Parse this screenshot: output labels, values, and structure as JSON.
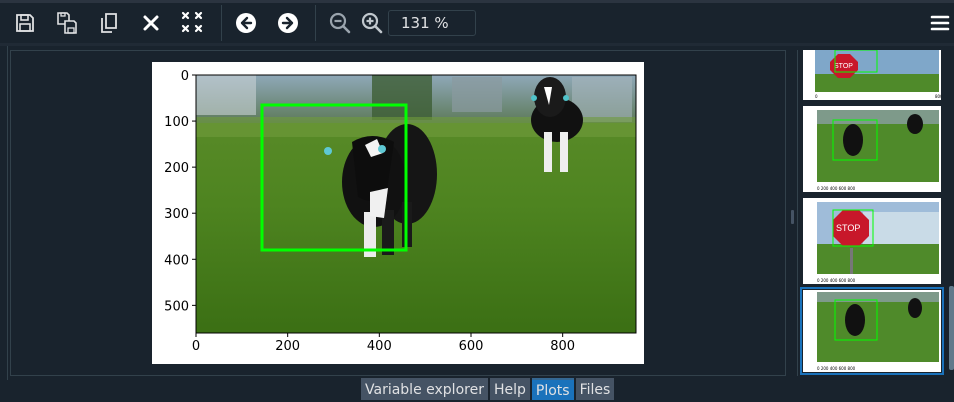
{
  "toolbar": {
    "buttons": [
      {
        "name": "save-icon"
      },
      {
        "name": "save-all-icon"
      },
      {
        "name": "copy-icon"
      },
      {
        "name": "remove-icon"
      },
      {
        "name": "remove-all-icon"
      },
      {
        "name": "previous-icon"
      },
      {
        "name": "next-icon"
      },
      {
        "name": "zoom-out-icon"
      },
      {
        "name": "zoom-in-icon"
      }
    ],
    "zoom_value": "131 %",
    "menu_icon": "hamburger-menu-icon"
  },
  "plot": {
    "x_ticks": [
      "0",
      "200",
      "400",
      "600",
      "800"
    ],
    "y_ticks": [
      "0",
      "100",
      "200",
      "300",
      "400",
      "500"
    ],
    "image_subject": "cow in grass field with green bounding box"
  },
  "thumbnails": [
    {
      "subject": "stop sign",
      "selected": false
    },
    {
      "subject": "cows",
      "selected": false
    },
    {
      "subject": "stop sign",
      "selected": false
    },
    {
      "subject": "cow",
      "selected": true
    }
  ],
  "tabs": [
    {
      "label": "Variable explorer",
      "active": false
    },
    {
      "label": "Help",
      "active": false
    },
    {
      "label": "Plots",
      "active": true
    },
    {
      "label": "Files",
      "active": false
    }
  ],
  "colors": {
    "background": "#19232d",
    "accent": "#1a72bb",
    "bbox": "#00ff00"
  }
}
